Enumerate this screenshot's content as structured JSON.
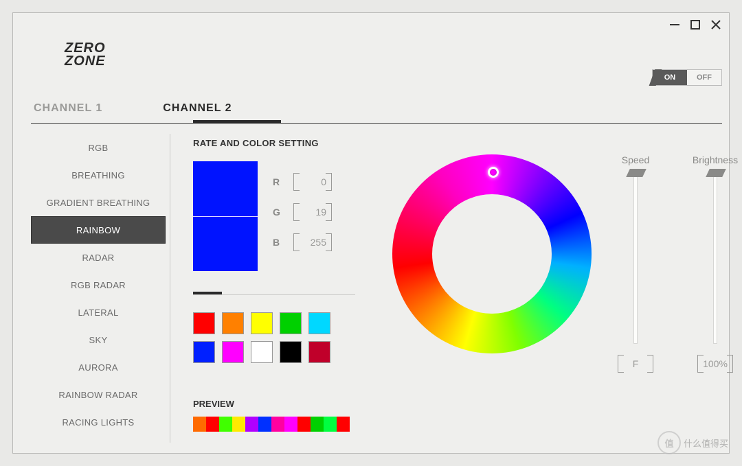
{
  "logo": {
    "line1": "ZERO",
    "line2": "ZONE"
  },
  "window_controls": {
    "minimize": "minimize-icon",
    "maximize": "maximize-icon",
    "close": "close-icon"
  },
  "power": {
    "on": "ON",
    "off": "OFF",
    "state": "on"
  },
  "tabs": [
    {
      "label": "CHANNEL 1",
      "active": false
    },
    {
      "label": "CHANNEL 2",
      "active": true
    }
  ],
  "effects": [
    {
      "label": "RGB",
      "active": false
    },
    {
      "label": "BREATHING",
      "active": false
    },
    {
      "label": "GRADIENT BREATHING",
      "active": false
    },
    {
      "label": "RAINBOW",
      "active": true
    },
    {
      "label": "RADAR",
      "active": false
    },
    {
      "label": "RGB RADAR",
      "active": false
    },
    {
      "label": "LATERAL",
      "active": false
    },
    {
      "label": "SKY",
      "active": false
    },
    {
      "label": "AURORA",
      "active": false
    },
    {
      "label": "RAINBOW RADAR",
      "active": false
    },
    {
      "label": "RACING LIGHTS",
      "active": false
    }
  ],
  "section_title": "RATE AND COLOR SETTING",
  "current_color": "#0013ff",
  "rgb": {
    "r_label": "R",
    "g_label": "G",
    "b_label": "B",
    "r": "0",
    "g": "19",
    "b": "255"
  },
  "palette": [
    "#ff0000",
    "#ff8000",
    "#ffff00",
    "#00d000",
    "#00d8ff",
    "#0020ff",
    "#ff00ff",
    "#ffffff",
    "#000000",
    "#c0002a"
  ],
  "preview_title": "PREVIEW",
  "preview_strip": [
    "#ff6a00",
    "#ff0000",
    "#40ff00",
    "#ffea00",
    "#b000ff",
    "#0030ff",
    "#ff00a0",
    "#ff00ff",
    "#ff0000",
    "#00d000",
    "#00ff40",
    "#ff0000"
  ],
  "sliders": {
    "speed": {
      "label": "Speed",
      "value": "F"
    },
    "brightness": {
      "label": "Brightness",
      "value": "100%"
    }
  },
  "watermark": {
    "text": "什么值得买",
    "badge": "值"
  }
}
